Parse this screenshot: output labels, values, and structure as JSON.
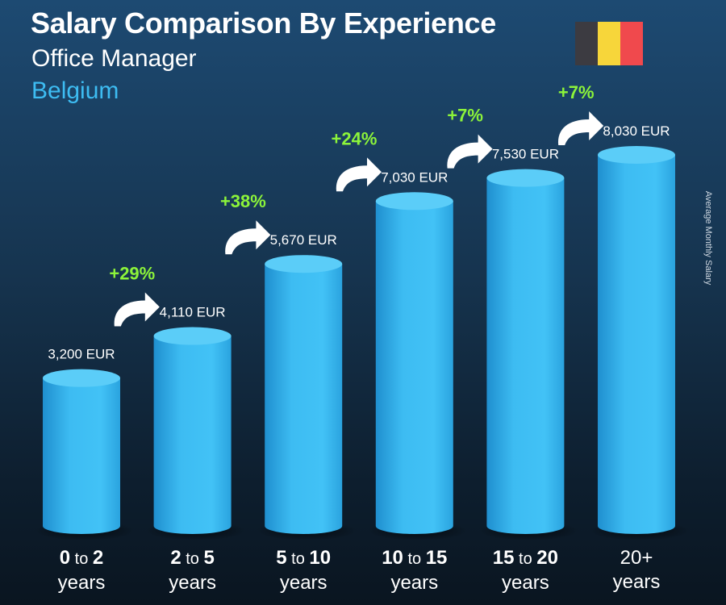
{
  "header": {
    "title": "Salary Comparison By Experience",
    "subtitle": "Office Manager",
    "country": "Belgium",
    "flag_colors": [
      "#3c3b41",
      "#f7d63a",
      "#f0494d"
    ]
  },
  "side_label": "Average Monthly Salary",
  "colors": {
    "bar": "#3dbcf2",
    "bar_top": "#5bcdf8",
    "percent": "#8cf43a"
  },
  "chart_data": {
    "type": "bar",
    "categories": [
      "0 to 2 years",
      "2 to 5 years",
      "5 to 10 years",
      "10 to 15 years",
      "15 to 20 years",
      "20+ years"
    ],
    "category_parts": [
      {
        "a": "0",
        "sep": "to",
        "b": "2",
        "unit": "years"
      },
      {
        "a": "2",
        "sep": "to",
        "b": "5",
        "unit": "years"
      },
      {
        "a": "5",
        "sep": "to",
        "b": "10",
        "unit": "years"
      },
      {
        "a": "10",
        "sep": "to",
        "b": "15",
        "unit": "years"
      },
      {
        "a": "15",
        "sep": "to",
        "b": "20",
        "unit": "years"
      },
      {
        "a": "20+",
        "sep": "",
        "b": "",
        "unit": "years"
      }
    ],
    "values": [
      3200,
      4110,
      5670,
      7030,
      7530,
      8030
    ],
    "value_labels": [
      "3,200 EUR",
      "4,110 EUR",
      "5,670 EUR",
      "7,030 EUR",
      "7,530 EUR",
      "8,030 EUR"
    ],
    "increases": [
      "+29%",
      "+38%",
      "+24%",
      "+7%",
      "+7%"
    ],
    "unit": "EUR",
    "title": "Salary Comparison By Experience",
    "ylabel": "Average Monthly Salary",
    "ylim": [
      0,
      8030
    ],
    "grid": false,
    "legend": "none"
  }
}
